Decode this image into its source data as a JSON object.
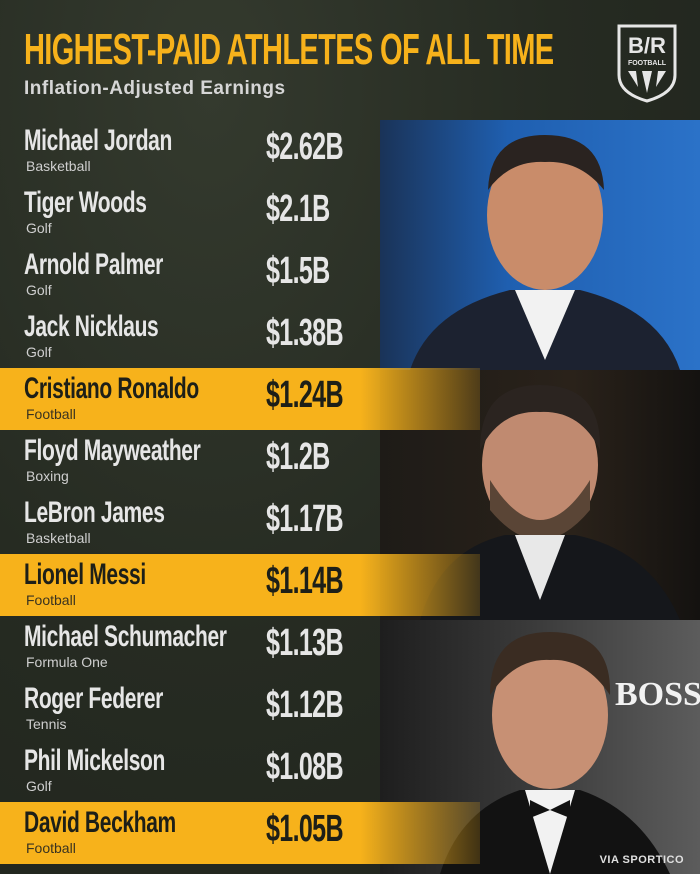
{
  "header": {
    "title": "HIGHEST-PAID ATHLETES OF ALL TIME",
    "subtitle": "Inflation-Adjusted Earnings",
    "logo_text": "B/R FOOTBALL"
  },
  "colors": {
    "accent": "#f7b21b",
    "background": "#262b22",
    "text": "#e6e6e6"
  },
  "athletes": [
    {
      "name": "Michael Jordan",
      "sport": "Basketball",
      "earnings": "$2.62B",
      "highlighted": false
    },
    {
      "name": "Tiger Woods",
      "sport": "Golf",
      "earnings": "$2.1B",
      "highlighted": false
    },
    {
      "name": "Arnold Palmer",
      "sport": "Golf",
      "earnings": "$1.5B",
      "highlighted": false
    },
    {
      "name": "Jack Nicklaus",
      "sport": "Golf",
      "earnings": "$1.38B",
      "highlighted": false
    },
    {
      "name": "Cristiano Ronaldo",
      "sport": "Football",
      "earnings": "$1.24B",
      "highlighted": true
    },
    {
      "name": "Floyd Mayweather",
      "sport": "Boxing",
      "earnings": "$1.2B",
      "highlighted": false
    },
    {
      "name": "LeBron James",
      "sport": "Basketball",
      "earnings": "$1.17B",
      "highlighted": false
    },
    {
      "name": "Lionel Messi",
      "sport": "Football",
      "earnings": "$1.14B",
      "highlighted": true
    },
    {
      "name": "Michael Schumacher",
      "sport": "Formula One",
      "earnings": "$1.13B",
      "highlighted": false
    },
    {
      "name": "Roger Federer",
      "sport": "Tennis",
      "earnings": "$1.12B",
      "highlighted": false
    },
    {
      "name": "Phil Mickelson",
      "sport": "Golf",
      "earnings": "$1.08B",
      "highlighted": false
    },
    {
      "name": "David Beckham",
      "sport": "Football",
      "earnings": "$1.05B",
      "highlighted": true
    }
  ],
  "credit": "VIA SPORTICO"
}
